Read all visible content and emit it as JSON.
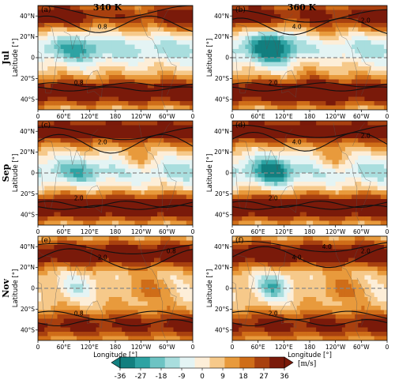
{
  "figure": {
    "column_titles": [
      "340 K",
      "360 K"
    ],
    "row_labels": [
      "Jul",
      "Sep",
      "Nov"
    ],
    "panel_labels": [
      "(a)",
      "(b)",
      "(c)",
      "(d)",
      "(e)",
      "(f)"
    ]
  },
  "chart_data": {
    "type": "heatmap",
    "xlabel": "Longitude [°]",
    "ylabel": "Latitude [°]",
    "x_ticks": [
      "0",
      "60°E",
      "120°E",
      "180",
      "120°W",
      "60°W",
      "0"
    ],
    "y_ticks": [
      "40°N",
      "20°N",
      "0",
      "20°S",
      "40°S"
    ],
    "xlim": [
      0,
      360
    ],
    "ylim": [
      -50,
      50
    ],
    "colorbar": {
      "label": "[m/s]",
      "ticks": [
        "-36",
        "-27",
        "-18",
        "-9",
        "0",
        "9",
        "18",
        "27",
        "36"
      ],
      "range": [
        -36,
        36
      ],
      "extend": "both",
      "colors": [
        "#127f7f",
        "#2ea3a3",
        "#6cc3c3",
        "#a9dede",
        "#e4f4f4",
        "#fdeed8",
        "#f6c98a",
        "#e89a3c",
        "#cf6d18",
        "#a8400f",
        "#7a1a0a"
      ]
    },
    "contour_values": [
      "0.8",
      "2.0",
      "4.0"
    ],
    "panels": [
      {
        "id": "a",
        "month": "Jul",
        "theta": "340 K",
        "contour_labels": [
          "0.8",
          "0.8"
        ]
      },
      {
        "id": "b",
        "month": "Jul",
        "theta": "360 K",
        "contour_labels": [
          "4.0",
          "2.0",
          "2.0"
        ]
      },
      {
        "id": "c",
        "month": "Sep",
        "theta": "340 K",
        "contour_labels": [
          "2.0",
          "2.0"
        ]
      },
      {
        "id": "d",
        "month": "Sep",
        "theta": "360 K",
        "contour_labels": [
          "4.0",
          "2.0",
          "2.0"
        ]
      },
      {
        "id": "e",
        "month": "Nov",
        "theta": "340 K",
        "contour_labels": [
          "2.0",
          "0.8",
          "0.8"
        ]
      },
      {
        "id": "f",
        "month": "Nov",
        "theta": "360 K",
        "contour_labels": [
          "4.0",
          "2.0",
          "2.0",
          "4.0"
        ]
      }
    ]
  }
}
